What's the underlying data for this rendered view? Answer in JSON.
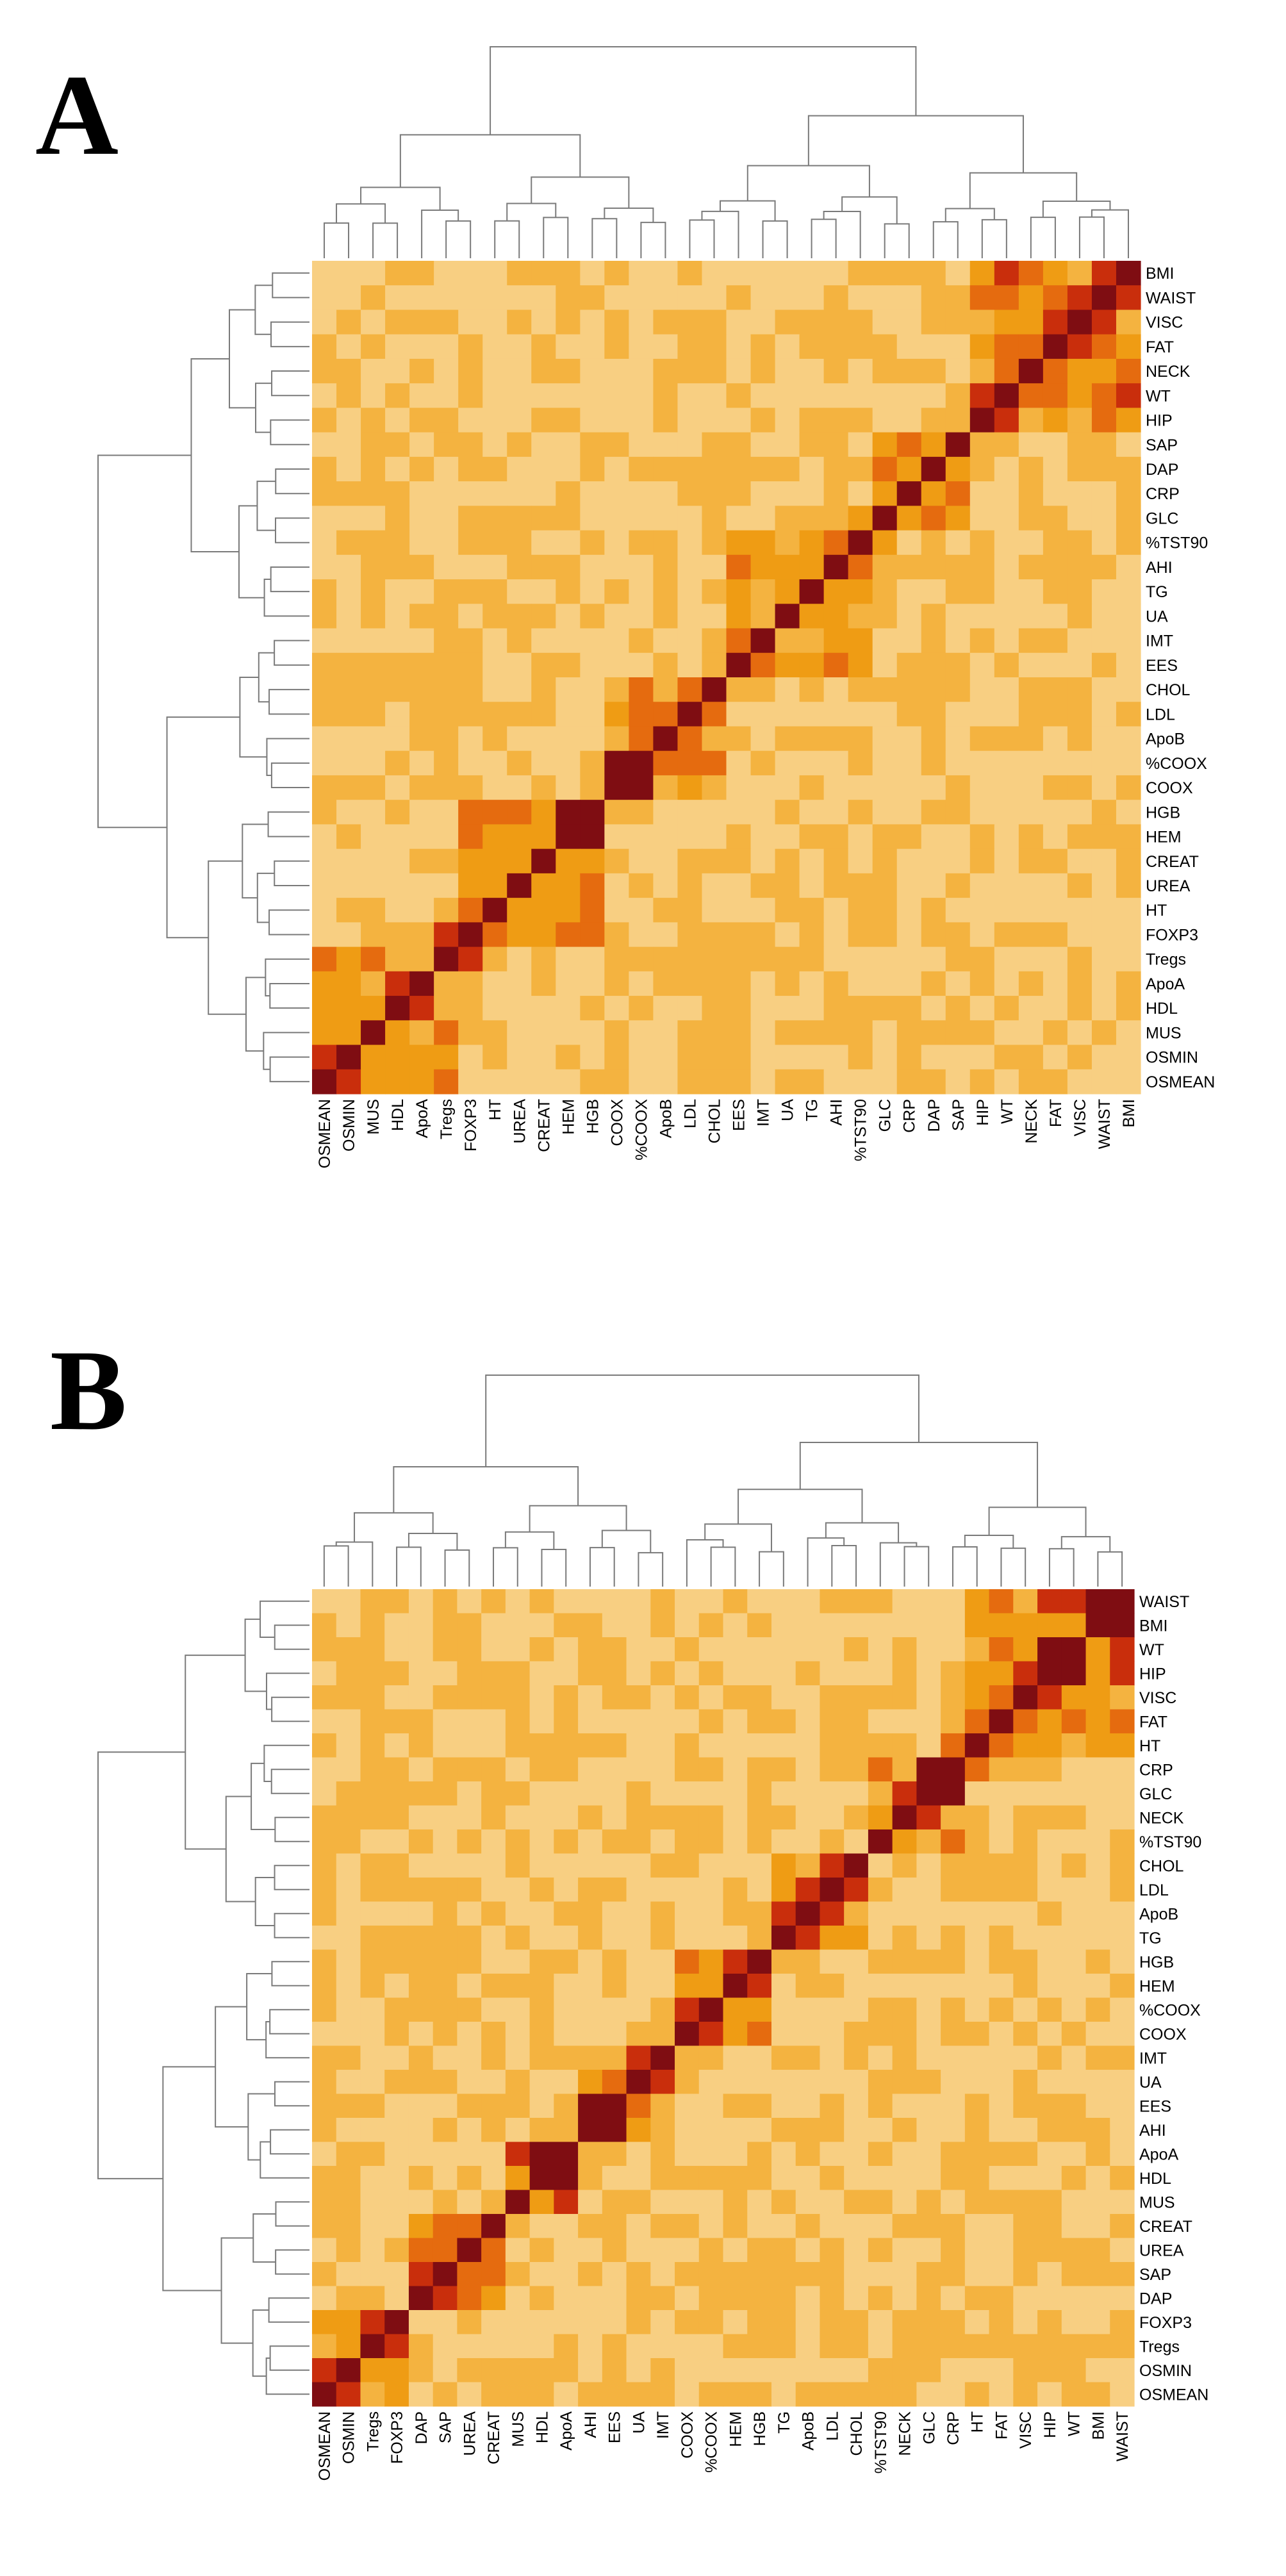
{
  "chart_data": [
    {
      "type": "heatmap",
      "panel_label": "A",
      "colorscale": [
        "#fff7cf",
        "#fde9a6",
        "#f8cf82",
        "#f4b340",
        "#ef9c14",
        "#e56b0f",
        "#c92e0c",
        "#7f0d12"
      ],
      "col_labels": [
        "OSMEAN",
        "OSMIN",
        "MUS",
        "HDL",
        "ApoA",
        "Tregs",
        "FOXP3",
        "HT",
        "UREA",
        "CREAT",
        "HEM",
        "HGB",
        "COOX",
        "%COOX",
        "ApoB",
        "LDL",
        "CHOL",
        "EES",
        "IMT",
        "UA",
        "TG",
        "AHI",
        "%TST90",
        "GLC",
        "CRP",
        "DAP",
        "SAP",
        "HIP",
        "WT",
        "NECK",
        "FAT",
        "VISC",
        "WAIST",
        "BMI"
      ],
      "row_labels": [
        "BMI",
        "WAIST",
        "VISC",
        "FAT",
        "NECK",
        "WT",
        "HIP",
        "SAP",
        "DAP",
        "CRP",
        "GLC",
        "%TST90",
        "AHI",
        "TG",
        "UA",
        "IMT",
        "EES",
        "CHOL",
        "LDL",
        "ApoB",
        "%COOX",
        "COOX",
        "HGB",
        "HEM",
        "CREAT",
        "UREA",
        "HT",
        "FOXP3",
        "Tregs",
        "ApoA",
        "HDL",
        "MUS",
        "OSMIN",
        "OSMEAN"
      ],
      "clusters": [
        [
          0,
          1,
          2,
          3,
          4,
          5
        ],
        [
          6,
          7,
          8,
          9,
          10,
          11
        ],
        [
          12,
          13,
          14,
          15,
          16
        ],
        [
          17,
          18,
          19,
          20,
          21,
          22
        ],
        [
          23,
          24,
          25,
          26
        ],
        [
          27,
          28,
          29,
          30,
          31,
          32,
          33
        ]
      ],
      "pairs": [
        [
          0,
          1,
          0.9
        ],
        [
          3,
          4,
          0.85
        ],
        [
          5,
          6,
          0.8
        ],
        [
          8,
          9,
          0.6
        ],
        [
          10,
          11,
          0.95
        ],
        [
          12,
          13,
          1.0
        ],
        [
          14,
          15,
          0.75
        ],
        [
          15,
          16,
          0.7
        ],
        [
          19,
          20,
          0.6
        ],
        [
          22,
          23,
          0.5
        ],
        [
          25,
          26,
          0.6
        ],
        [
          27,
          28,
          0.8
        ],
        [
          29,
          30,
          0.75
        ],
        [
          31,
          32,
          0.85
        ],
        [
          32,
          33,
          0.85
        ],
        [
          28,
          33,
          0.8
        ],
        [
          29,
          33,
          0.75
        ],
        [
          30,
          31,
          0.8
        ],
        [
          30,
          32,
          0.7
        ],
        [
          27,
          32,
          0.7
        ]
      ]
    },
    {
      "type": "heatmap",
      "panel_label": "B",
      "colorscale": [
        "#fff7cf",
        "#fde9a6",
        "#f8cf82",
        "#f4b340",
        "#ef9c14",
        "#e56b0f",
        "#c92e0c",
        "#7f0d12"
      ],
      "col_labels": [
        "OSMEAN",
        "OSMIN",
        "Tregs",
        "FOXP3",
        "DAP",
        "SAP",
        "UREA",
        "CREAT",
        "MUS",
        "HDL",
        "ApoA",
        "AHI",
        "EES",
        "UA",
        "IMT",
        "COOX",
        "%COOX",
        "HEM",
        "HGB",
        "TG",
        "ApoB",
        "LDL",
        "CHOL",
        "%TST90",
        "NECK",
        "GLC",
        "CRP",
        "HT",
        "FAT",
        "VISC",
        "HIP",
        "WT",
        "BMI",
        "WAIST"
      ],
      "row_labels": [
        "WAIST",
        "BMI",
        "WT",
        "HIP",
        "VISC",
        "FAT",
        "HT",
        "CRP",
        "GLC",
        "NECK",
        "%TST90",
        "CHOL",
        "LDL",
        "ApoB",
        "TG",
        "HGB",
        "HEM",
        "%COOX",
        "COOX",
        "IMT",
        "UA",
        "EES",
        "AHI",
        "ApoA",
        "HDL",
        "MUS",
        "CREAT",
        "UREA",
        "SAP",
        "DAP",
        "FOXP3",
        "Tregs",
        "OSMIN",
        "OSMEAN"
      ],
      "clusters": [
        [
          0,
          1,
          2,
          3
        ],
        [
          4,
          5,
          6,
          7
        ],
        [
          8,
          9,
          10
        ],
        [
          11,
          12,
          13,
          14
        ],
        [
          15,
          16,
          17,
          18
        ],
        [
          19,
          20,
          21,
          22
        ],
        [
          23,
          24,
          25,
          26
        ],
        [
          27,
          28,
          29,
          30,
          31,
          32,
          33
        ]
      ],
      "pairs": [
        [
          0,
          1,
          0.85
        ],
        [
          2,
          3,
          0.9
        ],
        [
          4,
          5,
          0.9
        ],
        [
          6,
          7,
          0.75
        ],
        [
          9,
          10,
          1.0
        ],
        [
          8,
          10,
          0.9
        ],
        [
          11,
          12,
          0.95
        ],
        [
          13,
          14,
          0.8
        ],
        [
          15,
          16,
          0.85
        ],
        [
          17,
          18,
          0.9
        ],
        [
          19,
          20,
          0.8
        ],
        [
          20,
          21,
          0.9
        ],
        [
          21,
          22,
          0.85
        ],
        [
          25,
          26,
          0.95
        ],
        [
          24,
          25,
          0.8
        ],
        [
          26,
          27,
          0.7
        ],
        [
          28,
          29,
          0.75
        ],
        [
          29,
          30,
          0.85
        ],
        [
          30,
          31,
          0.95
        ],
        [
          32,
          33,
          0.95
        ],
        [
          31,
          33,
          0.9
        ],
        [
          30,
          33,
          0.85
        ]
      ]
    }
  ]
}
